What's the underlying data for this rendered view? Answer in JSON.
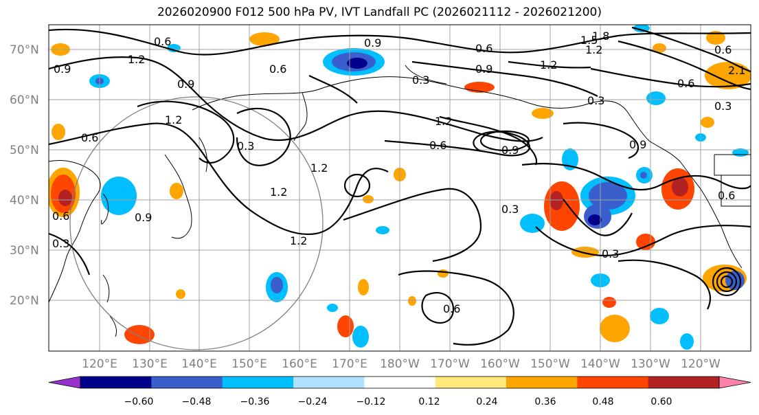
{
  "title": "2026020900 F012 500 hPa PV, IVT Landfall PC (2026021112 - 2026021200)",
  "map": {
    "lat_labels": [
      "70°N",
      "60°N",
      "50°N",
      "40°N",
      "30°N",
      "20°N"
    ],
    "lon_labels": [
      "120°E",
      "130°E",
      "140°E",
      "150°E",
      "160°E",
      "170°E",
      "180°W",
      "170°W",
      "160°W",
      "150°W",
      "140°W",
      "130°W",
      "120°W"
    ],
    "contour_labels": [
      "0.9",
      "1.2",
      "0.6",
      "0.9",
      "0.6",
      "0.9",
      "0.3",
      "0.9",
      "0.6",
      "1.2",
      "1.5",
      "1.8",
      "1.2",
      "0.6",
      "2.1",
      "0.3",
      "0.6",
      "1.2",
      "1.2",
      "0.3",
      "1.2",
      "1.2",
      "1.2",
      "0.6",
      "0.9",
      "0.6",
      "0.3",
      "0.9",
      "0.3",
      "0.3",
      "0.6",
      "0.9",
      "0.6",
      "0.3",
      "0.6"
    ]
  },
  "colorbar": {
    "ticks": [
      "−0.60",
      "−0.48",
      "−0.36",
      "−0.24",
      "−0.12",
      "0.12",
      "0.24",
      "0.36",
      "0.48",
      "0.60"
    ],
    "colors": [
      "#9932cc",
      "#00008b",
      "#3a5fcd",
      "#00bfff",
      "#b0e2ff",
      "#ffffff",
      "#ffe87c",
      "#ffa500",
      "#ff4500",
      "#b22222",
      "#ff82ab"
    ]
  }
}
